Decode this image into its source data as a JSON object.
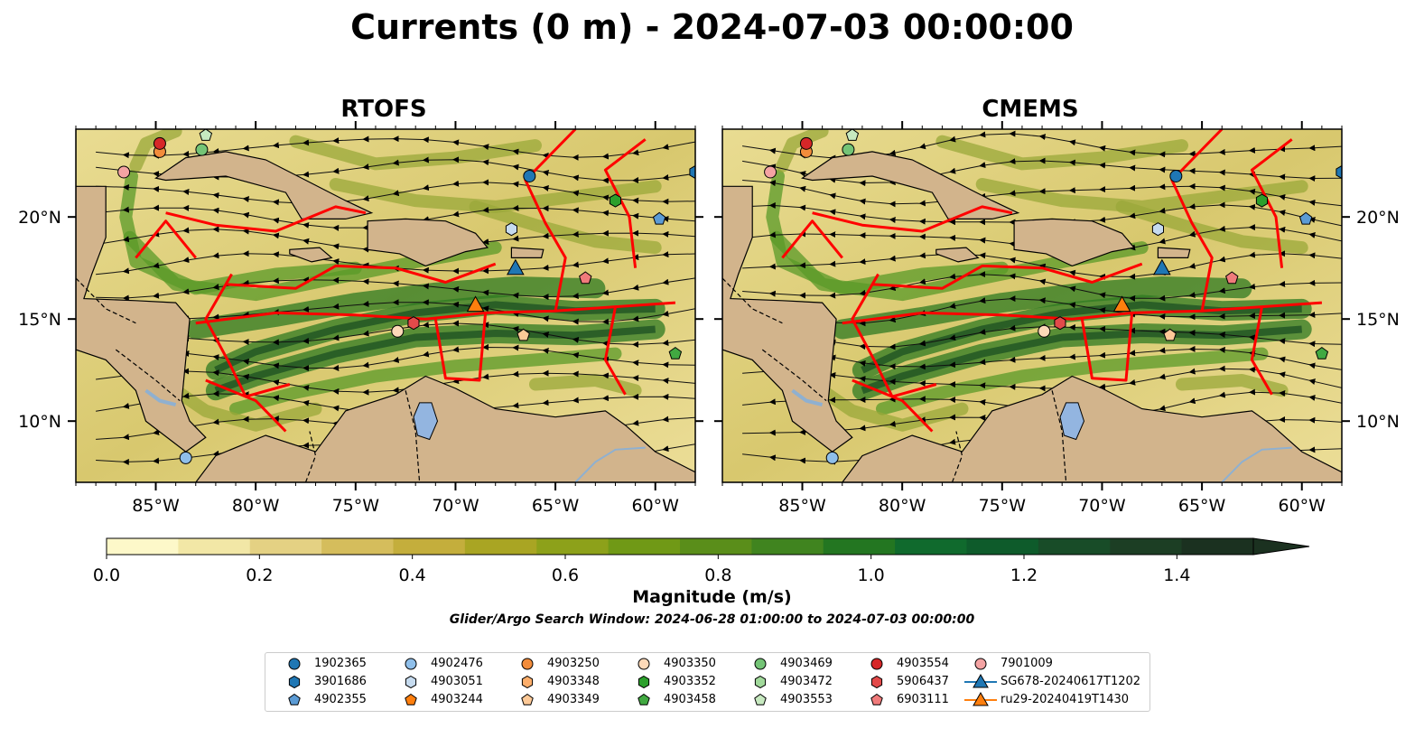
{
  "title": "Currents (0 m) - 2024-07-03 00:00:00",
  "panels": [
    {
      "title": "RTOFS"
    },
    {
      "title": "CMEMS"
    }
  ],
  "map": {
    "lon_range": [
      -89,
      -58
    ],
    "lat_range": [
      7,
      24.3
    ],
    "lon_ticks": [
      -85,
      -80,
      -75,
      -70,
      -65,
      -60
    ],
    "lon_tick_labels": [
      "85°W",
      "80°W",
      "75°W",
      "70°W",
      "65°W",
      "60°W"
    ],
    "lat_ticks": [
      10,
      15,
      20
    ],
    "lat_tick_labels": [
      "10°N",
      "15°N",
      "20°N"
    ],
    "land_color": "#d2b48c",
    "water_low_color": "#fdf6c3",
    "eez_color": "#ff0000",
    "lake_color": "#93b5e0"
  },
  "colorbar": {
    "label": "Magnitude (m/s)",
    "range": [
      0,
      1.5
    ],
    "ticks": [
      0.0,
      0.2,
      0.4,
      0.6,
      0.8,
      1.0,
      1.2,
      1.4
    ],
    "tick_labels": [
      "0.0",
      "0.2",
      "0.4",
      "0.6",
      "0.8",
      "1.0",
      "1.2",
      "1.4"
    ],
    "colors": [
      "#fdf8c9",
      "#f2e7a6",
      "#e4d183",
      "#d5bd5c",
      "#c4ae3c",
      "#a9a523",
      "#8da11a",
      "#709916",
      "#5a8e1a",
      "#40841f",
      "#237621",
      "#106a2d",
      "#0e5b2b",
      "#184c28",
      "#1c3e24",
      "#1b3120"
    ],
    "extend": "max"
  },
  "search_window": "Glider/Argo Search Window: 2024-06-28 01:00:00 to 2024-07-03 00:00:00",
  "legend": [
    {
      "label": "1902365",
      "marker": "circle",
      "color": "#1f77b4"
    },
    {
      "label": "3901686",
      "marker": "hexagon",
      "color": "#1f77b4"
    },
    {
      "label": "4902355",
      "marker": "pentagon",
      "color": "#5b9bd5"
    },
    {
      "label": "4902476",
      "marker": "circle",
      "color": "#8fbfea"
    },
    {
      "label": "4903051",
      "marker": "hexagon",
      "color": "#c6dbef"
    },
    {
      "label": "4903244",
      "marker": "pentagon",
      "color": "#ff7f0e"
    },
    {
      "label": "4903250",
      "marker": "circle",
      "color": "#f28c3b"
    },
    {
      "label": "4903348",
      "marker": "hexagon",
      "color": "#fdae6b"
    },
    {
      "label": "4903349",
      "marker": "pentagon",
      "color": "#fdc997"
    },
    {
      "label": "4903350",
      "marker": "circle",
      "color": "#fdd9b8"
    },
    {
      "label": "4903352",
      "marker": "hexagon",
      "color": "#2ca02c"
    },
    {
      "label": "4903458",
      "marker": "pentagon",
      "color": "#41a941"
    },
    {
      "label": "4903469",
      "marker": "circle",
      "color": "#74c476"
    },
    {
      "label": "4903472",
      "marker": "hexagon",
      "color": "#a1d99b"
    },
    {
      "label": "4903553",
      "marker": "pentagon",
      "color": "#c7e9c0"
    },
    {
      "label": "4903554",
      "marker": "circle",
      "color": "#d62728"
    },
    {
      "label": "5906437",
      "marker": "hexagon",
      "color": "#e34a4a"
    },
    {
      "label": "6903111",
      "marker": "pentagon",
      "color": "#f07b7b"
    },
    {
      "label": "7901009",
      "marker": "circle",
      "color": "#f4a3a3"
    },
    {
      "label": "SG678-20240617T1202",
      "marker": "triangle-line",
      "color": "#1f77b4"
    },
    {
      "label": "ru29-20240419T1430",
      "marker": "triangle-line",
      "color": "#ff7f0e"
    }
  ],
  "markers": [
    {
      "id": "1902365",
      "lon": -66.3,
      "lat": 22.0,
      "marker": "circle",
      "color": "#1f77b4"
    },
    {
      "id": "3901686",
      "lon": -58.0,
      "lat": 22.2,
      "marker": "hexagon",
      "color": "#1f77b4"
    },
    {
      "id": "4902355",
      "lon": -59.8,
      "lat": 19.9,
      "marker": "pentagon",
      "color": "#5b9bd5"
    },
    {
      "id": "4902476",
      "lon": -83.5,
      "lat": 8.2,
      "marker": "circle",
      "color": "#8fbfea"
    },
    {
      "id": "4903051",
      "lon": -67.2,
      "lat": 19.4,
      "marker": "hexagon",
      "color": "#c6dbef"
    },
    {
      "id": "4903250",
      "lon": -84.8,
      "lat": 23.2,
      "marker": "circle",
      "color": "#f28c3b"
    },
    {
      "id": "4903349",
      "lon": -66.6,
      "lat": 14.2,
      "marker": "pentagon",
      "color": "#fdc997"
    },
    {
      "id": "4903350",
      "lon": -72.9,
      "lat": 14.4,
      "marker": "circle",
      "color": "#fdd9b8"
    },
    {
      "id": "4903352",
      "lon": -62.0,
      "lat": 20.8,
      "marker": "hexagon",
      "color": "#2ca02c"
    },
    {
      "id": "4903458",
      "lon": -59.0,
      "lat": 13.3,
      "marker": "pentagon",
      "color": "#41a941"
    },
    {
      "id": "4903469",
      "lon": -82.7,
      "lat": 23.3,
      "marker": "circle",
      "color": "#74c476"
    },
    {
      "id": "4903553",
      "lon": -82.5,
      "lat": 24.0,
      "marker": "pentagon",
      "color": "#c7e9c0"
    },
    {
      "id": "4903554",
      "lon": -84.8,
      "lat": 23.6,
      "marker": "circle",
      "color": "#d62728"
    },
    {
      "id": "5906437",
      "lon": -72.1,
      "lat": 14.8,
      "marker": "hexagon",
      "color": "#e34a4a"
    },
    {
      "id": "6903111",
      "lon": -63.5,
      "lat": 17.0,
      "marker": "pentagon",
      "color": "#f07b7b"
    },
    {
      "id": "7901009",
      "lon": -86.6,
      "lat": 22.2,
      "marker": "circle",
      "color": "#f4a3a3"
    },
    {
      "id": "SG678-20240617T1202",
      "lon": -67.0,
      "lat": 17.5,
      "marker": "triangle",
      "color": "#1f77b4"
    },
    {
      "id": "ru29-20240419T1430",
      "lon": -69.0,
      "lat": 15.7,
      "marker": "triangle",
      "color": "#ff7f0e"
    }
  ]
}
